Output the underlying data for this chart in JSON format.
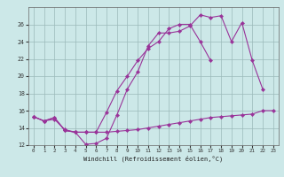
{
  "xlabel": "Windchill (Refroidissement éolien,°C)",
  "background_color": "#cce8e8",
  "grid_color": "#9bbaba",
  "line_color": "#993399",
  "x_hours": [
    0,
    1,
    2,
    3,
    4,
    5,
    6,
    7,
    8,
    9,
    10,
    11,
    12,
    13,
    14,
    15,
    16,
    17,
    18,
    19,
    20,
    21,
    22,
    23
  ],
  "series1": [
    15.3,
    14.8,
    15.2,
    13.7,
    13.5,
    12.1,
    12.2,
    12.8,
    15.5,
    18.5,
    20.5,
    23.5,
    25.0,
    25.0,
    25.2,
    25.8,
    27.1,
    26.8,
    27.0,
    24.0,
    26.2,
    21.8,
    18.5,
    null
  ],
  "series2": [
    15.3,
    14.8,
    15.2,
    13.7,
    13.5,
    13.5,
    13.5,
    15.8,
    18.3,
    20.0,
    21.8,
    23.2,
    24.0,
    25.5,
    26.0,
    26.0,
    24.0,
    21.8,
    null,
    null,
    null,
    null,
    null,
    null
  ],
  "series3": [
    15.3,
    14.8,
    15.0,
    13.8,
    13.5,
    13.5,
    13.5,
    13.5,
    13.6,
    13.7,
    13.8,
    14.0,
    14.2,
    14.4,
    14.6,
    14.8,
    15.0,
    15.2,
    15.3,
    15.4,
    15.5,
    15.6,
    16.0,
    16.0
  ],
  "ylim": [
    12,
    28
  ],
  "yticks": [
    12,
    14,
    16,
    18,
    20,
    22,
    24,
    26
  ],
  "xlim": [
    -0.5,
    23.5
  ],
  "xticks": [
    0,
    1,
    2,
    3,
    4,
    5,
    6,
    7,
    8,
    9,
    10,
    11,
    12,
    13,
    14,
    15,
    16,
    17,
    18,
    19,
    20,
    21,
    22,
    23
  ]
}
